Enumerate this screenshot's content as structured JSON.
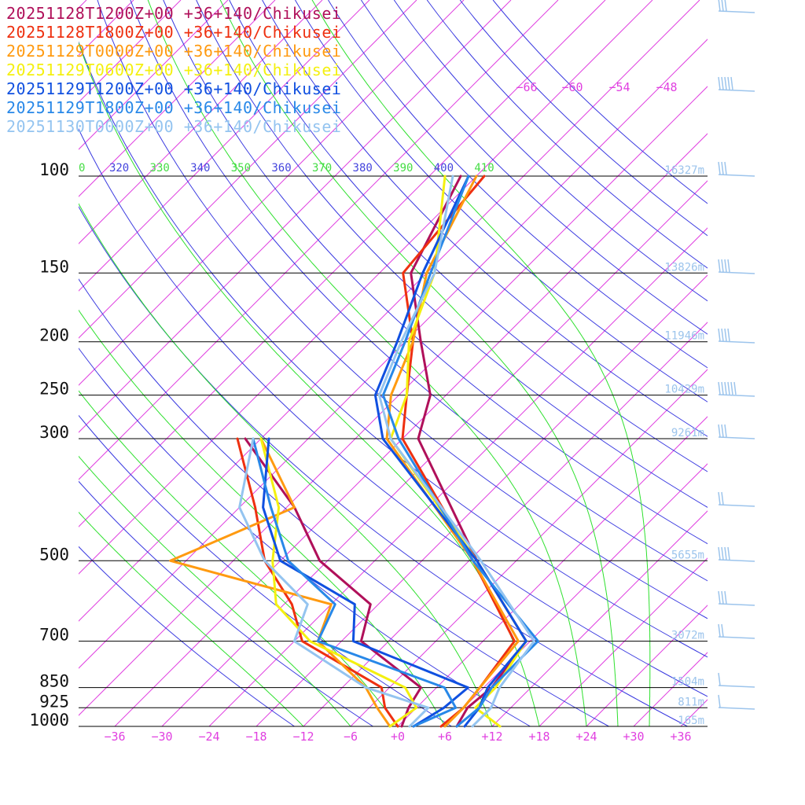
{
  "chart_data": {
    "type": "line",
    "chart_kind": "skew-T log-P sounding",
    "pressure_levels": [
      100,
      150,
      200,
      250,
      300,
      500,
      700,
      850,
      925,
      1000
    ],
    "x_ticks": [
      "−36",
      "−30",
      "−24",
      "−18",
      "−12",
      "−6",
      "+0",
      "+6",
      "+12",
      "+18",
      "+24",
      "+30",
      "+36"
    ],
    "theta_labels": [
      "0",
      "320",
      "330",
      "340",
      "350",
      "360",
      "370",
      "380",
      "390",
      "400",
      "410"
    ],
    "upper_temp_labels": [
      "−66",
      "−60",
      "−54",
      "−48"
    ],
    "heights": [
      {
        "p": 100,
        "label": "16327m"
      },
      {
        "p": 150,
        "label": "13826m"
      },
      {
        "p": 200,
        "label": "11946m"
      },
      {
        "p": 250,
        "label": "10429m"
      },
      {
        "p": 300,
        "label": "9261m"
      },
      {
        "p": 500,
        "label": "5655m"
      },
      {
        "p": 700,
        "label": "3072m"
      },
      {
        "p": 850,
        "label": "1504m"
      },
      {
        "p": 925,
        "label": "811m"
      },
      {
        "p": 1000,
        "label": "165m"
      }
    ],
    "colors": {
      "isotherm": "#e040e0",
      "isobar": "#000000",
      "dry_adiabat": "#3a3ae0",
      "moist_adiabat": "#2ee02e",
      "theta_dry_label": "#4444dd",
      "theta_moist_label": "#44dd44",
      "height_label": "#9cc4ec",
      "wind_barb": "#9cc4ec"
    },
    "series": [
      {
        "name": "20251128T1200Z+00 +36+140/Chikusei",
        "color": "#b0105a",
        "temperature": [
          {
            "p": 1000,
            "t": 7.5
          },
          {
            "p": 925,
            "t": 6.5
          },
          {
            "p": 850,
            "t": 7.0
          },
          {
            "p": 700,
            "t": 5.5
          },
          {
            "p": 500,
            "t": -11.0
          },
          {
            "p": 300,
            "t": -34.0
          },
          {
            "p": 250,
            "t": -38.0
          },
          {
            "p": 200,
            "t": -46.0
          },
          {
            "p": 150,
            "t": -56.0
          },
          {
            "p": 100,
            "t": -62.0
          }
        ],
        "dewpoint": [
          {
            "p": 1000,
            "t": 0.5
          },
          {
            "p": 925,
            "t": -1.0
          },
          {
            "p": 850,
            "t": -2.0
          },
          {
            "p": 700,
            "t": -15.5
          },
          {
            "p": 600,
            "t": -19.0
          },
          {
            "p": 500,
            "t": -31.0
          },
          {
            "p": 400,
            "t": -41.0
          },
          {
            "p": 300,
            "t": -56.0
          }
        ]
      },
      {
        "name": "20251128T1800Z+00 +36+140/Chikusei",
        "color": "#ee3010",
        "temperature": [
          {
            "p": 1000,
            "t": 5.5
          },
          {
            "p": 925,
            "t": 6.0
          },
          {
            "p": 850,
            "t": 5.5
          },
          {
            "p": 700,
            "t": 4.0
          },
          {
            "p": 500,
            "t": -11.5
          },
          {
            "p": 300,
            "t": -36.0
          },
          {
            "p": 250,
            "t": -41.0
          },
          {
            "p": 200,
            "t": -47.0
          },
          {
            "p": 150,
            "t": -57.0
          },
          {
            "p": 100,
            "t": -59.0
          }
        ],
        "dewpoint": [
          {
            "p": 1000,
            "t": 0.0
          },
          {
            "p": 925,
            "t": -4.0
          },
          {
            "p": 850,
            "t": -7.0
          },
          {
            "p": 700,
            "t": -23.0
          },
          {
            "p": 600,
            "t": -29.0
          },
          {
            "p": 500,
            "t": -38.0
          },
          {
            "p": 400,
            "t": -46.0
          },
          {
            "p": 300,
            "t": -57.0
          }
        ]
      },
      {
        "name": "20251129T0000Z+00 +36+140/Chikusei",
        "color": "#ff9a10",
        "temperature": [
          {
            "p": 1000,
            "t": 6.0
          },
          {
            "p": 925,
            "t": 6.0
          },
          {
            "p": 850,
            "t": 5.5
          },
          {
            "p": 700,
            "t": 4.5
          },
          {
            "p": 500,
            "t": -11.5
          },
          {
            "p": 300,
            "t": -38.0
          },
          {
            "p": 250,
            "t": -43.0
          },
          {
            "p": 200,
            "t": -47.0
          },
          {
            "p": 150,
            "t": -54.0
          },
          {
            "p": 100,
            "t": -60.0
          }
        ],
        "dewpoint": [
          {
            "p": 1000,
            "t": -1.0
          },
          {
            "p": 925,
            "t": -5.0
          },
          {
            "p": 850,
            "t": -9.0
          },
          {
            "p": 700,
            "t": -21.0
          },
          {
            "p": 600,
            "t": -24.0
          },
          {
            "p": 500,
            "t": -50.0
          },
          {
            "p": 400,
            "t": -41.0
          },
          {
            "p": 300,
            "t": -54.0
          }
        ]
      },
      {
        "name": "20251129T0600Z+00 +36+140/Chikusei",
        "color": "#f4f010",
        "temperature": [
          {
            "p": 1000,
            "t": 13.0
          },
          {
            "p": 925,
            "t": 7.5
          },
          {
            "p": 850,
            "t": 7.5
          },
          {
            "p": 700,
            "t": 5.5
          },
          {
            "p": 500,
            "t": -11.0
          },
          {
            "p": 300,
            "t": -37.5
          },
          {
            "p": 250,
            "t": -41.0
          },
          {
            "p": 200,
            "t": -47.5
          },
          {
            "p": 150,
            "t": -53.0
          },
          {
            "p": 100,
            "t": -64.0
          }
        ],
        "dewpoint": [
          {
            "p": 1000,
            "t": -1.0
          },
          {
            "p": 925,
            "t": 0.0
          },
          {
            "p": 850,
            "t": -4.0
          },
          {
            "p": 700,
            "t": -22.0
          },
          {
            "p": 600,
            "t": -31.0
          },
          {
            "p": 500,
            "t": -37.0
          },
          {
            "p": 400,
            "t": -43.0
          },
          {
            "p": 300,
            "t": -54.0
          }
        ]
      },
      {
        "name": "20251129T1200Z+00 +36+140/Chikusei",
        "color": "#1050e0",
        "temperature": [
          {
            "p": 1000,
            "t": 8.5
          },
          {
            "p": 925,
            "t": 8.0
          },
          {
            "p": 850,
            "t": 6.5
          },
          {
            "p": 700,
            "t": 5.5
          },
          {
            "p": 500,
            "t": -11.0
          },
          {
            "p": 300,
            "t": -38.5
          },
          {
            "p": 250,
            "t": -45.0
          },
          {
            "p": 200,
            "t": -49.0
          },
          {
            "p": 150,
            "t": -54.5
          },
          {
            "p": 100,
            "t": -61.0
          }
        ],
        "dewpoint": [
          {
            "p": 1000,
            "t": 2.0
          },
          {
            "p": 925,
            "t": 3.5
          },
          {
            "p": 850,
            "t": 4.0
          },
          {
            "p": 700,
            "t": -16.5
          },
          {
            "p": 600,
            "t": -21.0
          },
          {
            "p": 500,
            "t": -36.0
          },
          {
            "p": 400,
            "t": -45.0
          },
          {
            "p": 300,
            "t": -53.0
          }
        ]
      },
      {
        "name": "20251129T1800Z+00 +36+140/Chikusei",
        "color": "#2888e8",
        "temperature": [
          {
            "p": 1000,
            "t": 7.5
          },
          {
            "p": 925,
            "t": 8.0
          },
          {
            "p": 850,
            "t": 7.0
          },
          {
            "p": 700,
            "t": 7.0
          },
          {
            "p": 500,
            "t": -11.5
          },
          {
            "p": 300,
            "t": -36.5
          },
          {
            "p": 250,
            "t": -44.0
          },
          {
            "p": 200,
            "t": -48.0
          },
          {
            "p": 150,
            "t": -53.5
          },
          {
            "p": 100,
            "t": -61.0
          }
        ],
        "dewpoint": [
          {
            "p": 1000,
            "t": 2.0
          },
          {
            "p": 925,
            "t": 5.0
          },
          {
            "p": 850,
            "t": 1.0
          },
          {
            "p": 700,
            "t": -21.0
          },
          {
            "p": 600,
            "t": -23.5
          },
          {
            "p": 500,
            "t": -35.0
          },
          {
            "p": 400,
            "t": -44.0
          },
          {
            "p": 300,
            "t": -55.0
          }
        ]
      },
      {
        "name": "20251130T0000Z+00 +36+140/Chikusei",
        "color": "#94c4f0",
        "temperature": [
          {
            "p": 1000,
            "t": 9.5
          },
          {
            "p": 925,
            "t": 9.5
          },
          {
            "p": 850,
            "t": 8.0
          },
          {
            "p": 700,
            "t": 6.5
          },
          {
            "p": 500,
            "t": -10.5
          },
          {
            "p": 300,
            "t": -37.5
          },
          {
            "p": 250,
            "t": -44.5
          },
          {
            "p": 200,
            "t": -48.5
          },
          {
            "p": 150,
            "t": -53.0
          },
          {
            "p": 100,
            "t": -63.0
          }
        ],
        "dewpoint": [
          {
            "p": 1000,
            "t": 1.5
          },
          {
            "p": 925,
            "t": 1.5
          },
          {
            "p": 850,
            "t": -9.0
          },
          {
            "p": 700,
            "t": -24.0
          },
          {
            "p": 600,
            "t": -27.0
          },
          {
            "p": 500,
            "t": -38.0
          },
          {
            "p": 400,
            "t": -48.0
          },
          {
            "p": 300,
            "t": -55.0
          }
        ]
      }
    ]
  }
}
